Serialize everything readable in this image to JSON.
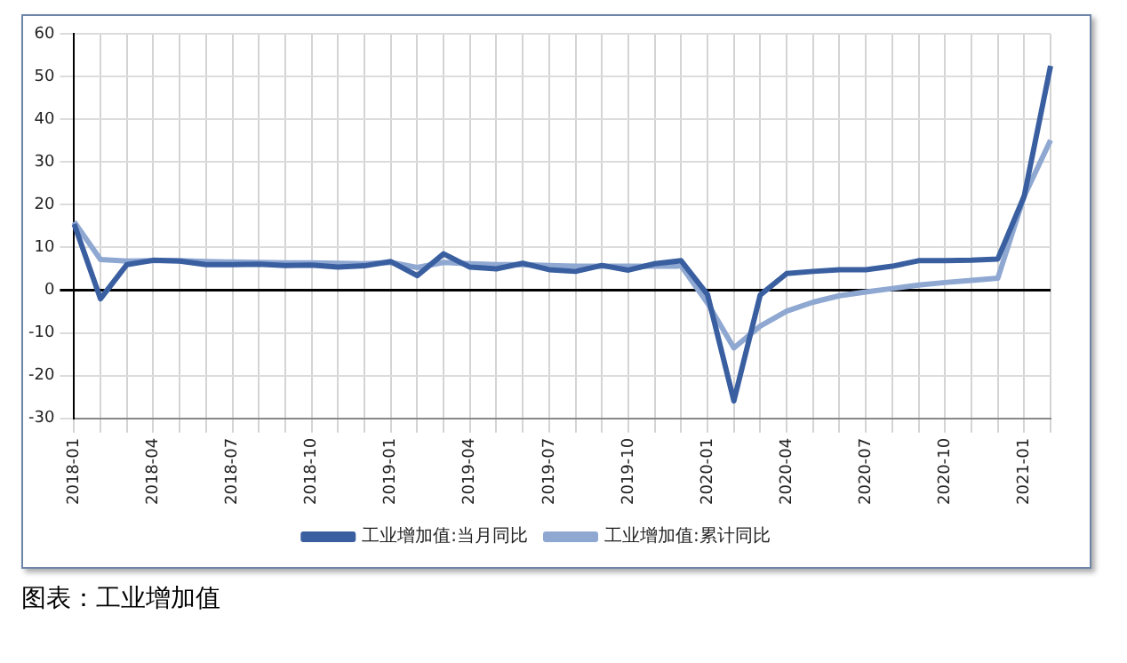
{
  "chart_data": {
    "type": "line",
    "categories": [
      "2018-01",
      null,
      null,
      "2018-04",
      null,
      null,
      "2018-07",
      null,
      null,
      "2018-10",
      null,
      null,
      "2019-01",
      null,
      null,
      "2019-04",
      null,
      null,
      "2019-07",
      null,
      null,
      "2019-10",
      null,
      null,
      "2020-01",
      null,
      null,
      "2020-04",
      null,
      null,
      "2020-07",
      null,
      null,
      "2020-10",
      null,
      null,
      "2021-01",
      null
    ],
    "series": [
      {
        "name": "工业增加值:当月同比",
        "color": "#3a5fa0",
        "values": [
          15.5,
          -2,
          6,
          7,
          6.8,
          6,
          6,
          6.1,
          5.8,
          5.9,
          5.4,
          5.7,
          6.7,
          3.4,
          8.5,
          5.4,
          5,
          6.3,
          4.8,
          4.4,
          5.8,
          4.7,
          6.2,
          6.9,
          -1,
          -25.9,
          -1.1,
          3.9,
          4.4,
          4.8,
          4.8,
          5.6,
          6.9,
          6.9,
          7,
          7.3,
          22,
          52.5
        ]
      },
      {
        "name": "工业增加值:累计同比",
        "color": "#8fa8d2",
        "values": [
          16,
          7.2,
          6.8,
          6.9,
          6.9,
          6.7,
          6.6,
          6.5,
          6.4,
          6.4,
          6.3,
          6.2,
          6.5,
          5.3,
          6.5,
          6.2,
          6,
          6,
          5.8,
          5.6,
          5.6,
          5.6,
          5.6,
          5.7,
          -3,
          -13.5,
          -8.4,
          -4.9,
          -2.8,
          -1.3,
          -0.4,
          0.4,
          1.2,
          1.8,
          2.3,
          2.8,
          22,
          35.1
        ]
      }
    ],
    "ylim": [
      -30,
      60
    ],
    "yticks": [
      -30,
      -20,
      -10,
      0,
      10,
      20,
      30,
      40,
      50,
      60
    ],
    "grid": true,
    "legend": "bottom",
    "line_style": "solid",
    "marker": "none",
    "annotations": [
      "图表：工业增加值"
    ]
  }
}
